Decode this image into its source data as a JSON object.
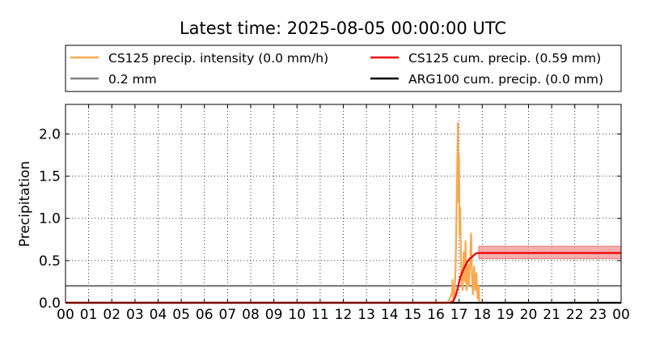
{
  "chart_data": {
    "type": "line",
    "title": "Latest time: 2025-08-05 00:00:00 UTC",
    "xlabel": "",
    "ylabel": "Precipitation",
    "xlim": [
      0,
      24
    ],
    "ylim": [
      0,
      2.35
    ],
    "x_ticks": [
      "00",
      "01",
      "02",
      "03",
      "04",
      "05",
      "06",
      "07",
      "08",
      "09",
      "10",
      "11",
      "12",
      "13",
      "14",
      "15",
      "16",
      "17",
      "18",
      "19",
      "20",
      "21",
      "22",
      "23",
      "00"
    ],
    "y_ticks": [
      "0.0",
      "0.5",
      "1.0",
      "1.5",
      "2.0"
    ],
    "y_tick_values": [
      0,
      0.5,
      1.0,
      1.5,
      2.0
    ],
    "grid": true,
    "legend_position": "above plot",
    "legend": [
      {
        "label": "CS125 precip. intensity (0.0 mm/h)",
        "color": "#faa74d",
        "key": "intensity"
      },
      {
        "label": "0.2 mm",
        "color": "#808080",
        "key": "threshold"
      },
      {
        "label": "CS125 cum. precip. (0.59 mm)",
        "color": "#ee0000",
        "key": "cs125_cum"
      },
      {
        "label": "ARG100 cum. precip. (0.0 mm)",
        "color": "#000000",
        "key": "arg100_cum"
      }
    ],
    "series": [
      {
        "key": "intensity",
        "color": "#faa74d",
        "points": [
          [
            0,
            0
          ],
          [
            16.5,
            0
          ],
          [
            16.6,
            0.05
          ],
          [
            16.7,
            0.12
          ],
          [
            16.72,
            0.27
          ],
          [
            16.75,
            0.05
          ],
          [
            16.8,
            0.1
          ],
          [
            16.85,
            0.4
          ],
          [
            16.88,
            0.9
          ],
          [
            16.92,
            1.6
          ],
          [
            16.95,
            2.13
          ],
          [
            16.97,
            1.2
          ],
          [
            17.0,
            1.75
          ],
          [
            17.02,
            0.8
          ],
          [
            17.05,
            1.13
          ],
          [
            17.08,
            0.55
          ],
          [
            17.1,
            0.3
          ],
          [
            17.15,
            0.15
          ],
          [
            17.2,
            0.6
          ],
          [
            17.25,
            0.25
          ],
          [
            17.28,
            0.73
          ],
          [
            17.32,
            0.15
          ],
          [
            17.38,
            0.45
          ],
          [
            17.42,
            0.2
          ],
          [
            17.48,
            0.5
          ],
          [
            17.52,
            0.82
          ],
          [
            17.56,
            0.3
          ],
          [
            17.6,
            0.1
          ],
          [
            17.65,
            0.43
          ],
          [
            17.7,
            0.15
          ],
          [
            17.75,
            0.35
          ],
          [
            17.8,
            0.05
          ],
          [
            17.85,
            0.2
          ],
          [
            17.88,
            0.0
          ],
          [
            17.95,
            0.0
          ],
          [
            18.0,
            0.0
          ],
          [
            24,
            0
          ]
        ]
      },
      {
        "key": "threshold",
        "color": "#808080",
        "points": [
          [
            0,
            0.2
          ],
          [
            24,
            0.2
          ]
        ]
      },
      {
        "key": "cs125_cum",
        "color": "#ee0000",
        "band": {
          "lower": 0.52,
          "upper": 0.67,
          "color": "#f4a0a0"
        },
        "points": [
          [
            0,
            0
          ],
          [
            16.6,
            0
          ],
          [
            16.75,
            0.02
          ],
          [
            16.85,
            0.08
          ],
          [
            16.95,
            0.18
          ],
          [
            17.05,
            0.3
          ],
          [
            17.15,
            0.37
          ],
          [
            17.25,
            0.43
          ],
          [
            17.35,
            0.48
          ],
          [
            17.45,
            0.52
          ],
          [
            17.55,
            0.54
          ],
          [
            17.7,
            0.58
          ],
          [
            17.8,
            0.59
          ],
          [
            24,
            0.59
          ]
        ]
      },
      {
        "key": "arg100_cum",
        "color": "#000000",
        "points": [
          [
            0,
            0
          ],
          [
            24,
            0
          ]
        ]
      }
    ]
  }
}
